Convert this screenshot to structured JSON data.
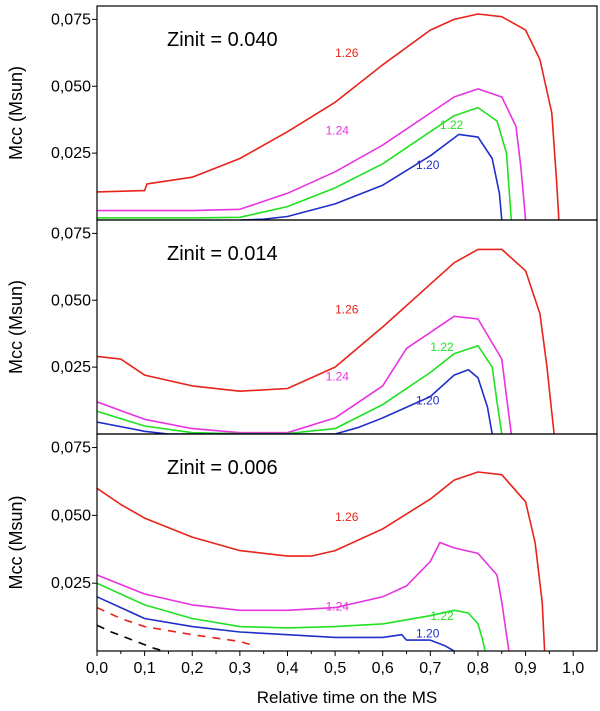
{
  "chart_data": {
    "type": "line",
    "xlabel": "Relative time on the MS",
    "xlim": [
      0.0,
      1.05
    ],
    "xticks": [
      "0,0",
      "0,1",
      "0,2",
      "0,3",
      "0,4",
      "0,5",
      "0,6",
      "0,7",
      "0,8",
      "0,9",
      "1,0"
    ],
    "ylim": [
      0.0,
      0.08
    ],
    "yticks": [
      "0,025",
      "0,050",
      "0,075"
    ],
    "colors": {
      "1.26": "#e8231a",
      "1.24": "#e733e0",
      "1.22": "#22e022",
      "1.20": "#1f2fc8",
      "dashed": "#000000"
    },
    "panels": [
      {
        "title": "Zinit = 0.040",
        "ylabel": "Mcc (Msun)",
        "series": [
          {
            "name": "1.26",
            "color": "#e8231a",
            "label_at": [
              0.5,
              0.061
            ],
            "x": [
              0.0,
              0.1,
              0.105,
              0.2,
              0.3,
              0.4,
              0.5,
              0.6,
              0.7,
              0.75,
              0.8,
              0.85,
              0.9,
              0.93,
              0.955,
              0.965,
              0.97
            ],
            "y": [
              0.0105,
              0.011,
              0.0135,
              0.016,
              0.023,
              0.033,
              0.044,
              0.058,
              0.071,
              0.075,
              0.077,
              0.076,
              0.071,
              0.06,
              0.04,
              0.015,
              0.0
            ]
          },
          {
            "name": "1.24",
            "color": "#e733e0",
            "label_at": [
              0.48,
              0.032
            ],
            "x": [
              0.0,
              0.1,
              0.2,
              0.3,
              0.4,
              0.5,
              0.6,
              0.7,
              0.75,
              0.8,
              0.85,
              0.88,
              0.89,
              0.9
            ],
            "y": [
              0.0035,
              0.0035,
              0.0035,
              0.004,
              0.01,
              0.018,
              0.028,
              0.04,
              0.046,
              0.049,
              0.046,
              0.035,
              0.02,
              0.0
            ]
          },
          {
            "name": "1.22",
            "color": "#22e022",
            "label_at": [
              0.72,
              0.034
            ],
            "x": [
              0.0,
              0.1,
              0.2,
              0.3,
              0.4,
              0.5,
              0.6,
              0.7,
              0.75,
              0.8,
              0.84,
              0.86,
              0.87
            ],
            "y": [
              0.0008,
              0.0008,
              0.0008,
              0.001,
              0.005,
              0.012,
              0.021,
              0.033,
              0.039,
              0.042,
              0.037,
              0.025,
              0.0
            ]
          },
          {
            "name": "1.20",
            "color": "#1f2fc8",
            "label_at": [
              0.67,
              0.019
            ],
            "x": [
              0.3,
              0.35,
              0.4,
              0.5,
              0.6,
              0.7,
              0.76,
              0.8,
              0.83,
              0.845,
              0.85
            ],
            "y": [
              0.0,
              0.0003,
              0.0013,
              0.006,
              0.013,
              0.024,
              0.032,
              0.031,
              0.023,
              0.01,
              0.0
            ]
          }
        ]
      },
      {
        "title": "Zinit = 0.014",
        "ylabel": "Mcc (Msun)",
        "series": [
          {
            "name": "1.26",
            "color": "#e8231a",
            "label_at": [
              0.5,
              0.045
            ],
            "x": [
              0.0,
              0.05,
              0.1,
              0.2,
              0.3,
              0.4,
              0.5,
              0.6,
              0.7,
              0.75,
              0.8,
              0.85,
              0.9,
              0.93,
              0.945,
              0.955,
              0.96
            ],
            "y": [
              0.029,
              0.028,
              0.022,
              0.018,
              0.016,
              0.017,
              0.025,
              0.04,
              0.056,
              0.064,
              0.069,
              0.069,
              0.061,
              0.045,
              0.025,
              0.008,
              0.0
            ]
          },
          {
            "name": "1.24",
            "color": "#e733e0",
            "label_at": [
              0.48,
              0.02
            ],
            "x": [
              0.0,
              0.1,
              0.2,
              0.3,
              0.4,
              0.5,
              0.6,
              0.65,
              0.7,
              0.75,
              0.8,
              0.85,
              0.86,
              0.87
            ],
            "y": [
              0.012,
              0.0055,
              0.002,
              0.0005,
              0.0005,
              0.006,
              0.018,
              0.032,
              0.038,
              0.044,
              0.043,
              0.028,
              0.014,
              0.0
            ]
          },
          {
            "name": "1.22",
            "color": "#22e022",
            "label_at": [
              0.7,
              0.031
            ],
            "x": [
              0.0,
              0.1,
              0.2,
              0.3,
              0.4,
              0.5,
              0.6,
              0.7,
              0.75,
              0.8,
              0.83,
              0.84,
              0.85
            ],
            "y": [
              0.0085,
              0.003,
              0.0005,
              0.0001,
              0.0002,
              0.002,
              0.011,
              0.023,
              0.03,
              0.033,
              0.025,
              0.012,
              0.0
            ]
          },
          {
            "name": "1.20",
            "color": "#1f2fc8",
            "label_at": [
              0.67,
              0.011
            ],
            "x": [
              0.0,
              0.1,
              0.15,
              0.5,
              0.55,
              0.6,
              0.7,
              0.75,
              0.78,
              0.8,
              0.82,
              0.83
            ],
            "y": [
              0.0045,
              0.001,
              0.0,
              0.0,
              0.0025,
              0.006,
              0.014,
              0.022,
              0.024,
              0.021,
              0.01,
              0.0
            ]
          }
        ]
      },
      {
        "title": "Zinit = 0.006",
        "ylabel": "Mcc (Msun)",
        "series": [
          {
            "name": "1.26",
            "color": "#e8231a",
            "label_at": [
              0.5,
              0.048
            ],
            "x": [
              0.0,
              0.05,
              0.1,
              0.2,
              0.3,
              0.4,
              0.45,
              0.5,
              0.6,
              0.7,
              0.75,
              0.8,
              0.85,
              0.9,
              0.92,
              0.935,
              0.94
            ],
            "y": [
              0.06,
              0.054,
              0.049,
              0.042,
              0.037,
              0.035,
              0.035,
              0.037,
              0.045,
              0.056,
              0.063,
              0.066,
              0.065,
              0.055,
              0.04,
              0.018,
              0.0
            ]
          },
          {
            "name": "1.24",
            "color": "#e733e0",
            "label_at": [
              0.48,
              0.015
            ],
            "x": [
              0.0,
              0.1,
              0.2,
              0.3,
              0.4,
              0.5,
              0.6,
              0.65,
              0.7,
              0.72,
              0.75,
              0.8,
              0.84,
              0.85,
              0.86,
              0.865
            ],
            "y": [
              0.028,
              0.021,
              0.017,
              0.015,
              0.015,
              0.016,
              0.02,
              0.024,
              0.033,
              0.04,
              0.038,
              0.036,
              0.028,
              0.018,
              0.006,
              0.0
            ]
          },
          {
            "name": "1.22",
            "color": "#22e022",
            "label_at": [
              0.7,
              0.0115
            ],
            "x": [
              0.0,
              0.1,
              0.2,
              0.3,
              0.4,
              0.5,
              0.6,
              0.7,
              0.75,
              0.78,
              0.8,
              0.81,
              0.815
            ],
            "y": [
              0.025,
              0.017,
              0.012,
              0.009,
              0.0085,
              0.009,
              0.01,
              0.013,
              0.015,
              0.014,
              0.01,
              0.004,
              0.0
            ]
          },
          {
            "name": "1.20",
            "color": "#1f2fc8",
            "label_at": [
              0.67,
              0.005
            ],
            "x": [
              0.0,
              0.05,
              0.1,
              0.2,
              0.3,
              0.4,
              0.5,
              0.6,
              0.64,
              0.65,
              0.7,
              0.73,
              0.75
            ],
            "y": [
              0.02,
              0.016,
              0.012,
              0.009,
              0.007,
              0.006,
              0.005,
              0.005,
              0.006,
              0.004,
              0.004,
              0.002,
              0.0
            ]
          },
          {
            "name": "",
            "color": "#e8231a",
            "dashed": true,
            "x": [
              0.0,
              0.05,
              0.1,
              0.2,
              0.3,
              0.33
            ],
            "y": [
              0.016,
              0.012,
              0.009,
              0.006,
              0.0035,
              0.002
            ]
          },
          {
            "name": "",
            "color": "#000000",
            "dashed": true,
            "x": [
              0.0,
              0.03,
              0.06,
              0.09,
              0.12,
              0.14
            ],
            "y": [
              0.0095,
              0.007,
              0.005,
              0.003,
              0.001,
              0.0
            ]
          }
        ]
      }
    ]
  }
}
